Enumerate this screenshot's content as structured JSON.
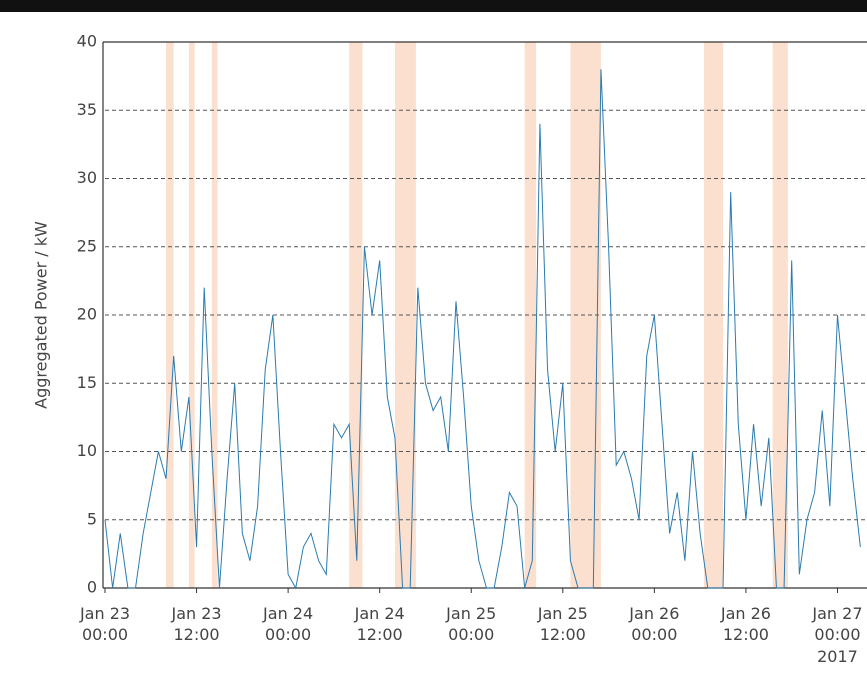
{
  "chart_data": {
    "type": "line",
    "y_label": "Aggregated Power / kW",
    "year_label": "2017",
    "x": [
      "2017-01-23T00:00",
      "2017-01-23T01:00",
      "2017-01-23T02:00",
      "2017-01-23T03:00",
      "2017-01-23T04:00",
      "2017-01-23T05:00",
      "2017-01-23T06:00",
      "2017-01-23T07:00",
      "2017-01-23T08:00",
      "2017-01-23T09:00",
      "2017-01-23T10:00",
      "2017-01-23T11:00",
      "2017-01-23T12:00",
      "2017-01-23T13:00",
      "2017-01-23T14:00",
      "2017-01-23T15:00",
      "2017-01-23T16:00",
      "2017-01-23T17:00",
      "2017-01-23T18:00",
      "2017-01-23T19:00",
      "2017-01-23T20:00",
      "2017-01-23T21:00",
      "2017-01-23T22:00",
      "2017-01-23T23:00",
      "2017-01-24T00:00",
      "2017-01-24T01:00",
      "2017-01-24T02:00",
      "2017-01-24T03:00",
      "2017-01-24T04:00",
      "2017-01-24T05:00",
      "2017-01-24T06:00",
      "2017-01-24T07:00",
      "2017-01-24T08:00",
      "2017-01-24T09:00",
      "2017-01-24T10:00",
      "2017-01-24T11:00",
      "2017-01-24T12:00",
      "2017-01-24T13:00",
      "2017-01-24T14:00",
      "2017-01-24T15:00",
      "2017-01-24T16:00",
      "2017-01-24T17:00",
      "2017-01-24T18:00",
      "2017-01-24T19:00",
      "2017-01-24T20:00",
      "2017-01-24T21:00",
      "2017-01-24T22:00",
      "2017-01-24T23:00",
      "2017-01-25T00:00",
      "2017-01-25T01:00",
      "2017-01-25T02:00",
      "2017-01-25T03:00",
      "2017-01-25T04:00",
      "2017-01-25T05:00",
      "2017-01-25T06:00",
      "2017-01-25T07:00",
      "2017-01-25T08:00",
      "2017-01-25T09:00",
      "2017-01-25T10:00",
      "2017-01-25T11:00",
      "2017-01-25T12:00",
      "2017-01-25T13:00",
      "2017-01-25T14:00",
      "2017-01-25T15:00",
      "2017-01-25T16:00",
      "2017-01-25T17:00",
      "2017-01-25T18:00",
      "2017-01-25T19:00",
      "2017-01-25T20:00",
      "2017-01-25T21:00",
      "2017-01-25T22:00",
      "2017-01-25T23:00",
      "2017-01-26T00:00",
      "2017-01-26T01:00",
      "2017-01-26T02:00",
      "2017-01-26T03:00",
      "2017-01-26T04:00",
      "2017-01-26T05:00",
      "2017-01-26T06:00",
      "2017-01-26T07:00",
      "2017-01-26T08:00",
      "2017-01-26T09:00",
      "2017-01-26T10:00",
      "2017-01-26T11:00",
      "2017-01-26T12:00",
      "2017-01-26T13:00",
      "2017-01-26T14:00",
      "2017-01-26T15:00",
      "2017-01-26T16:00",
      "2017-01-26T17:00",
      "2017-01-26T18:00",
      "2017-01-26T19:00",
      "2017-01-26T20:00",
      "2017-01-26T21:00",
      "2017-01-26T22:00",
      "2017-01-26T23:00",
      "2017-01-27T00:00",
      "2017-01-27T01:00",
      "2017-01-27T02:00",
      "2017-01-27T03:00"
    ],
    "series": [
      {
        "color": "#2b7bb0",
        "values": [
          5,
          0,
          4,
          0,
          0,
          4,
          7,
          10,
          8,
          17,
          10,
          14,
          3,
          22,
          10,
          0,
          8,
          15,
          4,
          2,
          6,
          16,
          20,
          10,
          1,
          0,
          3,
          4,
          2,
          1,
          12,
          11,
          12,
          2,
          25,
          20,
          24,
          14,
          11,
          0,
          0,
          22,
          15,
          13,
          14,
          10,
          21,
          14,
          6,
          2,
          0,
          0,
          3,
          7,
          6,
          0,
          2,
          34,
          16,
          10,
          15,
          2,
          0,
          0,
          0,
          38,
          25,
          9,
          10,
          8,
          5,
          17,
          20,
          12,
          4,
          7,
          2,
          10,
          4,
          0,
          0,
          0,
          29,
          12,
          5,
          12,
          6,
          11,
          0,
          0,
          24,
          1,
          5,
          7,
          13,
          6,
          20,
          14,
          8,
          3
        ]
      }
    ],
    "spans": [
      [
        "2017-01-23T08:00",
        "2017-01-23T09:00"
      ],
      [
        "2017-01-23T11:00",
        "2017-01-23T11:45"
      ],
      [
        "2017-01-23T14:00",
        "2017-01-23T14:45"
      ],
      [
        "2017-01-24T08:00",
        "2017-01-24T09:45"
      ],
      [
        "2017-01-24T14:00",
        "2017-01-24T16:45"
      ],
      [
        "2017-01-25T07:00",
        "2017-01-25T08:30"
      ],
      [
        "2017-01-25T13:00",
        "2017-01-25T17:00"
      ],
      [
        "2017-01-26T06:30",
        "2017-01-26T09:00"
      ],
      [
        "2017-01-26T15:30",
        "2017-01-26T17:30"
      ]
    ],
    "span_color": "#fbe0cf",
    "xlim": [
      "2017-01-23T00:00",
      "2017-01-27T04:00"
    ],
    "xticks": [
      {
        "value": "2017-01-23T00:00",
        "label": "Jan 23 00:00"
      },
      {
        "value": "2017-01-23T12:00",
        "label": "Jan 23 12:00"
      },
      {
        "value": "2017-01-24T00:00",
        "label": "Jan 24 00:00"
      },
      {
        "value": "2017-01-24T12:00",
        "label": "Jan 24 12:00"
      },
      {
        "value": "2017-01-25T00:00",
        "label": "Jan 25 00:00"
      },
      {
        "value": "2017-01-25T12:00",
        "label": "Jan 25 12:00"
      },
      {
        "value": "2017-01-26T00:00",
        "label": "Jan 26 00:00"
      },
      {
        "value": "2017-01-26T12:00",
        "label": "Jan 26 12:00"
      },
      {
        "value": "2017-01-27T00:00",
        "label": "Jan 27 00:00"
      }
    ],
    "ylim": [
      0,
      40
    ],
    "yticks": [
      0,
      5,
      10,
      15,
      20,
      25,
      30,
      35,
      40
    ],
    "grid": true
  }
}
